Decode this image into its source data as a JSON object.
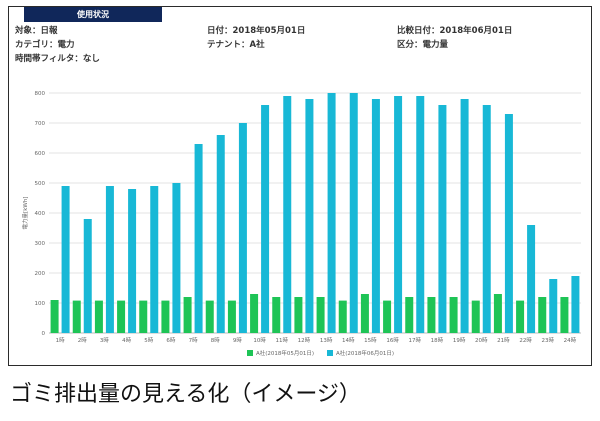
{
  "header": {
    "tab_label": "使用状況",
    "target": "対象：日報",
    "category": "カテゴリ：電力",
    "time_filter": "時間帯フィルタ：なし",
    "date": "日付：2018年05月01日",
    "tenant": "テナント：A社",
    "compare_date": "比較日付：2018年06月01日",
    "division": "区分：電力量"
  },
  "caption": "ゴミ排出量の見える化（イメージ）",
  "colors": {
    "series1": "#1ec456",
    "series2": "#18b8d6"
  },
  "chart_data": {
    "type": "bar",
    "ylabel": "電力量[kWh]",
    "ylim": [
      0,
      800
    ],
    "yticks": [
      "0",
      "100",
      "200",
      "300",
      "400",
      "500",
      "600",
      "700",
      "800"
    ],
    "grid": true,
    "legend": "bottom",
    "categories": [
      "1時",
      "2時",
      "3時",
      "4時",
      "5時",
      "6時",
      "7時",
      "8時",
      "9時",
      "10時",
      "11時",
      "12時",
      "13時",
      "14時",
      "15時",
      "16時",
      "17時",
      "18時",
      "19時",
      "20時",
      "21時",
      "22時",
      "23時",
      "24時"
    ],
    "series": [
      {
        "name": "A社(2018年05月01日)",
        "values": [
          110,
          108,
          108,
          108,
          108,
          108,
          120,
          108,
          108,
          130,
          120,
          120,
          120,
          108,
          130,
          108,
          120,
          120,
          120,
          108,
          130,
          108,
          120,
          120
        ]
      },
      {
        "name": "A社(2018年06月01日)",
        "values": [
          490,
          380,
          490,
          480,
          490,
          500,
          630,
          660,
          700,
          760,
          790,
          780,
          800,
          800,
          780,
          790,
          790,
          760,
          780,
          760,
          730,
          360,
          180,
          190
        ]
      }
    ]
  }
}
